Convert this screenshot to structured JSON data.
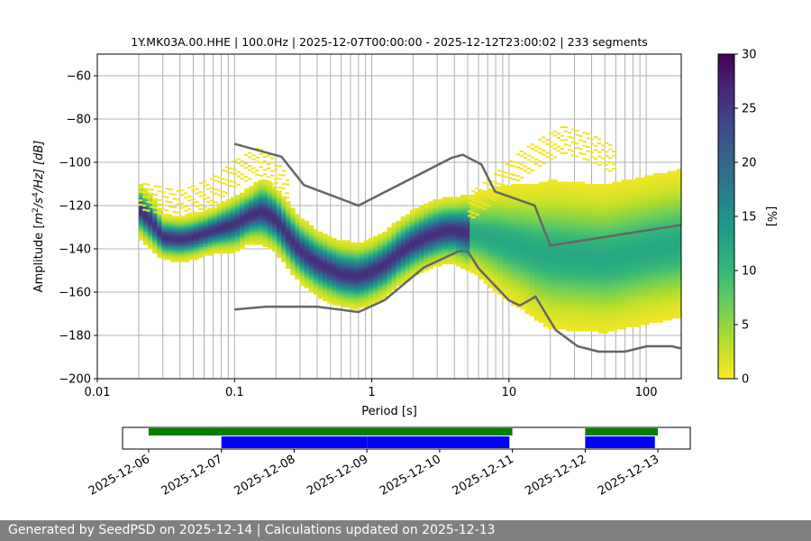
{
  "chart_data": [
    {
      "type": "heatmap",
      "title": "1Y.MK03A.00.HHE | 100.0Hz | 2025-12-07T00:00:00 - 2025-12-12T23:00:02 | 233 segments",
      "xlabel": "Period [s]",
      "ylabel_parts": [
        "Amplitude [",
        "m",
        "2",
        "/s",
        "4",
        "/Hz] [dB]"
      ],
      "x_scale": "log",
      "xlim": [
        0.01,
        180
      ],
      "ylim": [
        -200,
        -50
      ],
      "x_ticks": [
        0.01,
        0.1,
        1,
        10,
        100
      ],
      "x_tick_labels": [
        "0.01",
        "0.1",
        "1",
        "10",
        "100"
      ],
      "y_ticks": [
        -200,
        -180,
        -160,
        -140,
        -120,
        -100,
        -80,
        -60
      ],
      "y_tick_labels": [
        "−200",
        "−180",
        "−160",
        "−140",
        "−120",
        "−100",
        "−80",
        "−60"
      ],
      "grid": true,
      "colorbar": {
        "label": "[%]",
        "range": [
          0,
          30
        ],
        "ticks": [
          0,
          5,
          10,
          15,
          20,
          25,
          30
        ],
        "tick_labels": [
          "0",
          "5",
          "10",
          "15",
          "20",
          "25",
          "30"
        ],
        "colormap": [
          "#fde725",
          "#b5de2b",
          "#6ece58",
          "#35b779",
          "#1f9e89",
          "#26828e",
          "#31688e",
          "#3e4989",
          "#482878",
          "#440154"
        ]
      },
      "mode_curve": {
        "period": [
          0.02,
          0.025,
          0.03,
          0.04,
          0.05,
          0.07,
          0.1,
          0.13,
          0.16,
          0.2,
          0.25,
          0.3,
          0.4,
          0.5,
          0.6,
          0.8,
          1.0,
          1.3,
          1.6,
          2,
          2.5,
          3,
          3.5,
          4,
          5,
          6,
          7,
          8,
          10,
          13,
          16,
          20,
          30,
          50,
          100,
          180
        ],
        "db": [
          -122,
          -128,
          -135,
          -136,
          -135,
          -132,
          -129,
          -125,
          -123,
          -127,
          -135,
          -141,
          -147,
          -150,
          -152,
          -153,
          -151,
          -147,
          -142,
          -138,
          -135,
          -133,
          -132,
          -132,
          -133,
          -134,
          -135,
          -136,
          -138,
          -140,
          -142,
          -143,
          -144,
          -145,
          -141,
          -138
        ],
        "spread": [
          5,
          5,
          4,
          4,
          4,
          4,
          5,
          5,
          6,
          6,
          6,
          6,
          6,
          6,
          6,
          6,
          6,
          6,
          6,
          6,
          6,
          6,
          6,
          6,
          7,
          8,
          9,
          10,
          11,
          12,
          13,
          14,
          14,
          14,
          14,
          14
        ]
      },
      "upper_branch": {
        "period": [
          0.02,
          0.04,
          0.07,
          0.1,
          0.15,
          0.2,
          0.25
        ],
        "db": [
          -116,
          -120,
          -114,
          -106,
          -100,
          -106,
          -114
        ]
      },
      "high_branch": {
        "period": [
          5,
          8,
          12,
          18,
          25,
          40,
          60
        ],
        "db": [
          -122,
          -112,
          -102,
          -95,
          -90,
          -94,
          -100
        ]
      },
      "nhnm": {
        "period": [
          0.1,
          0.22,
          0.32,
          0.8,
          3.8,
          4.6,
          6.3,
          7.9,
          15.4,
          20,
          354.8
        ],
        "db": [
          -91.5,
          -97.4,
          -110.5,
          -120,
          -98,
          -96.5,
          -101,
          -113.5,
          -120,
          -138.5,
          -126
        ]
      },
      "nlnm": {
        "period": [
          0.1,
          0.17,
          0.4,
          0.8,
          1.24,
          2.4,
          4.3,
          5,
          6,
          10,
          12,
          15.6,
          21.9,
          31.6,
          45,
          70,
          101,
          154,
          178
        ],
        "db": [
          -168,
          -166.7,
          -166.7,
          -169.2,
          -163.7,
          -148.6,
          -141.1,
          -141.1,
          -149,
          -163.8,
          -166.2,
          -162.1,
          -177.5,
          -185,
          -187.5,
          -187.5,
          -185,
          -185,
          -186
        ]
      }
    },
    {
      "type": "timeline",
      "x_tick_labels": [
        "2025-12-06",
        "2025-12-07",
        "2025-12-08",
        "2025-12-09",
        "2025-12-10",
        "2025-12-11",
        "2025-12-12",
        "2025-12-13"
      ],
      "data_segments": [
        [
          "2025-12-06T00:00",
          "2025-12-10T23:59"
        ],
        [
          "2025-12-12T00:00",
          "2025-12-12T23:59"
        ]
      ],
      "psd_segments": [
        [
          "2025-12-07T00:00",
          "2025-12-08T23:59"
        ],
        [
          "2025-12-09T00:00",
          "2025-12-10T23:00"
        ],
        [
          "2025-12-12T00:00",
          "2025-12-12T23:00"
        ]
      ],
      "colors": {
        "data": "#008000",
        "psd": "#0000ff"
      }
    }
  ],
  "footer": "Generated by SeedPSD on 2025-12-14 | Calculations updated on 2025-12-13",
  "colors": {
    "model_lines": "#666666",
    "grid": "#b0b0b0",
    "footer_bg": "#808080"
  }
}
